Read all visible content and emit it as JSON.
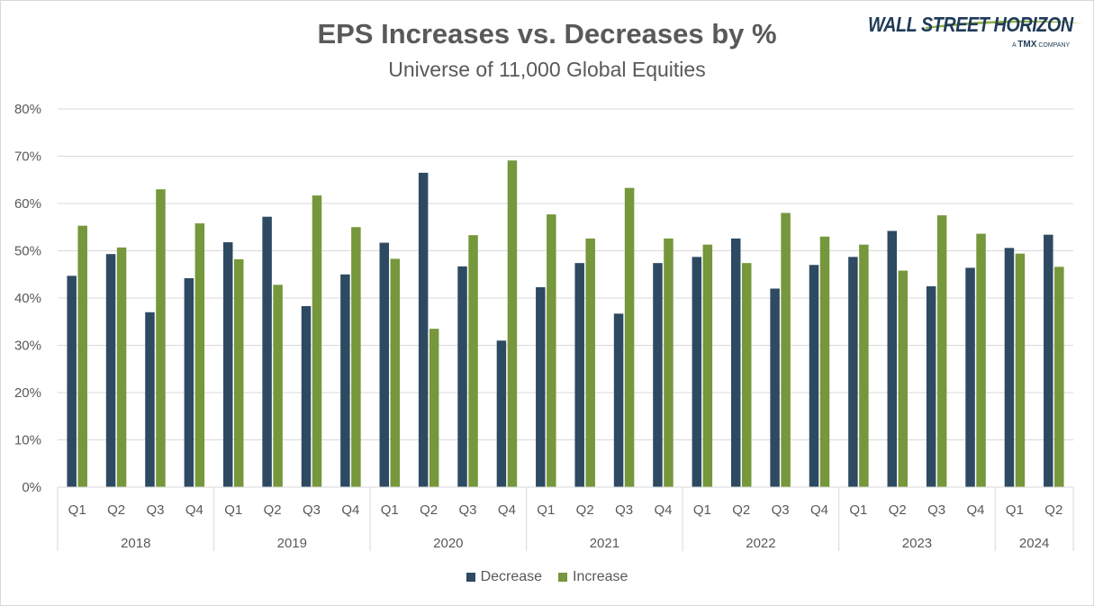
{
  "chart_data": {
    "type": "bar",
    "title": "EPS Increases vs. Decreases by %",
    "subtitle": "Universe of 11,000 Global Equities",
    "ylim": [
      0,
      80
    ],
    "y_ticks": [
      "0%",
      "10%",
      "20%",
      "30%",
      "40%",
      "50%",
      "60%",
      "70%",
      "80%"
    ],
    "y_tick_values": [
      0,
      10,
      20,
      30,
      40,
      50,
      60,
      70,
      80
    ],
    "grid": true,
    "legend_position": "bottom",
    "categories": [
      "Q1",
      "Q2",
      "Q3",
      "Q4",
      "Q1",
      "Q2",
      "Q3",
      "Q4",
      "Q1",
      "Q2",
      "Q3",
      "Q4",
      "Q1",
      "Q2",
      "Q3",
      "Q4",
      "Q1",
      "Q2",
      "Q3",
      "Q4",
      "Q1",
      "Q2",
      "Q3",
      "Q4",
      "Q1",
      "Q2"
    ],
    "groups": [
      {
        "label": "2018",
        "count": 4
      },
      {
        "label": "2019",
        "count": 4
      },
      {
        "label": "2020",
        "count": 4
      },
      {
        "label": "2021",
        "count": 4
      },
      {
        "label": "2022",
        "count": 4
      },
      {
        "label": "2023",
        "count": 4
      },
      {
        "label": "2024",
        "count": 2
      }
    ],
    "series": [
      {
        "name": "Decrease",
        "color": "#2e4a62",
        "values": [
          44.7,
          49.3,
          37.0,
          44.2,
          51.8,
          57.2,
          38.3,
          45.0,
          51.7,
          66.5,
          46.7,
          31.0,
          42.3,
          47.4,
          36.7,
          47.4,
          48.7,
          52.6,
          42.0,
          47.0,
          48.7,
          54.2,
          42.5,
          46.4,
          50.6,
          53.4
        ]
      },
      {
        "name": "Increase",
        "color": "#76973b",
        "values": [
          55.3,
          50.7,
          63.0,
          55.8,
          48.2,
          42.8,
          61.7,
          55.0,
          48.3,
          33.5,
          53.3,
          69.1,
          57.7,
          52.6,
          63.3,
          52.6,
          51.3,
          47.4,
          58.0,
          53.0,
          51.3,
          45.8,
          57.5,
          53.6,
          49.4,
          46.6
        ]
      }
    ]
  },
  "logo": {
    "name": "WALL STREET HORIZON",
    "tagline_a": "A",
    "tagline_b": "TMX",
    "tagline_c": "COMPANY"
  }
}
